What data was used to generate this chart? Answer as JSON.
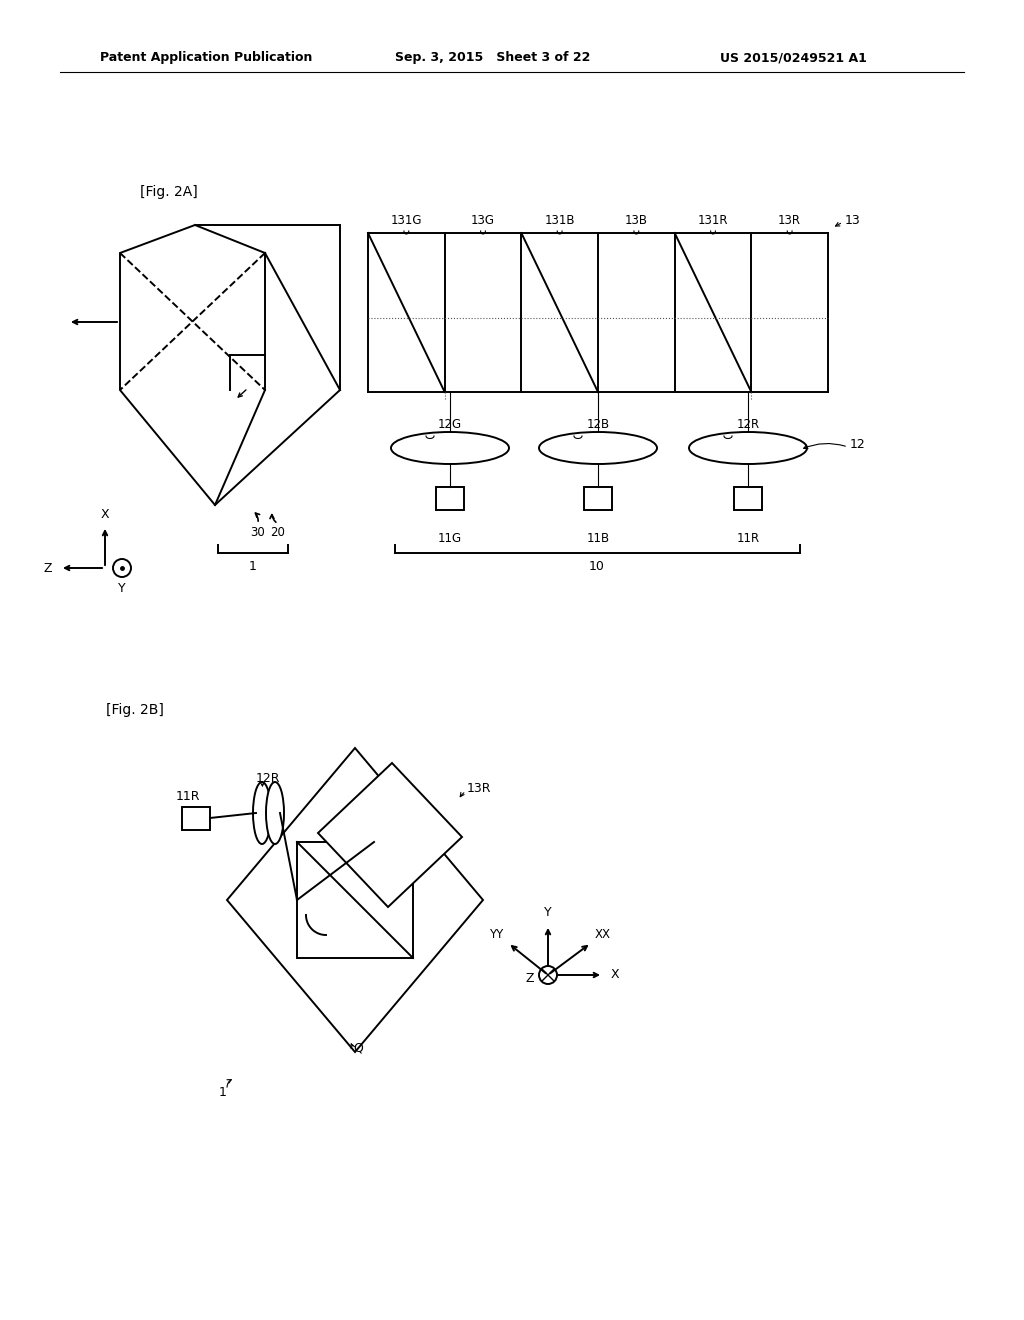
{
  "header": "Patent Application Publication      Sep. 3, 2015   Sheet 3 of 22      US 2015/0249521 A1",
  "fig2a_label": "[Fig. 2A]",
  "fig2b_label": "[Fig. 2B]",
  "bg_color": "#ffffff",
  "line_color": "#000000",
  "panel_labels": [
    "131G",
    "13G",
    "131B",
    "13B",
    "131R",
    "13R"
  ],
  "lens_labels_2a": [
    "12G",
    "12B",
    "12R"
  ],
  "src_labels_2a": [
    "11G",
    "11B",
    "11R"
  ]
}
